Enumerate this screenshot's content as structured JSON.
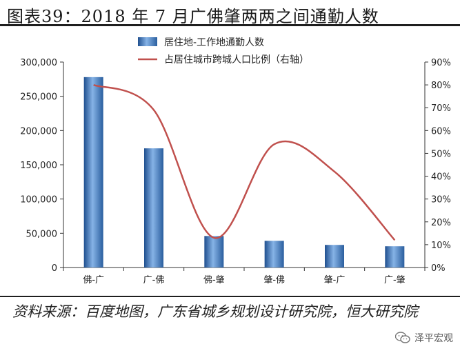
{
  "title": "图表39：2018 年 7 月广佛肇两两之间通勤人数",
  "source": "资料来源：百度地图，广东省城乡规划设计研究院，恒大研究院",
  "watermark": "泽平宏观",
  "colors": {
    "bar": "#3b6fb0",
    "line": "#c0504d",
    "axis": "#333333"
  },
  "chart_data": {
    "type": "bar",
    "categories": [
      "佛-广",
      "广-佛",
      "佛-肇",
      "肇-佛",
      "肇-广",
      "广-肇"
    ],
    "series": [
      {
        "name": "居住地-工作地通勤人数",
        "type": "bar",
        "axis": "left",
        "values": [
          278000,
          174000,
          46000,
          39000,
          33000,
          31000
        ]
      },
      {
        "name": "占居住城市跨城人口比例（右轴）",
        "type": "line",
        "axis": "right",
        "values": [
          0.8,
          0.69,
          0.13,
          0.54,
          0.42,
          0.12
        ]
      }
    ],
    "y_left": {
      "min": 0,
      "max": 300000,
      "ticks": [
        "0",
        "50,000",
        "100,000",
        "150,000",
        "200,000",
        "250,000",
        "300,000"
      ]
    },
    "y_right": {
      "min": 0,
      "max": 0.9,
      "ticks": [
        "0%",
        "10%",
        "20%",
        "30%",
        "40%",
        "50%",
        "60%",
        "70%",
        "80%",
        "90%"
      ]
    },
    "legend_position": "top"
  }
}
